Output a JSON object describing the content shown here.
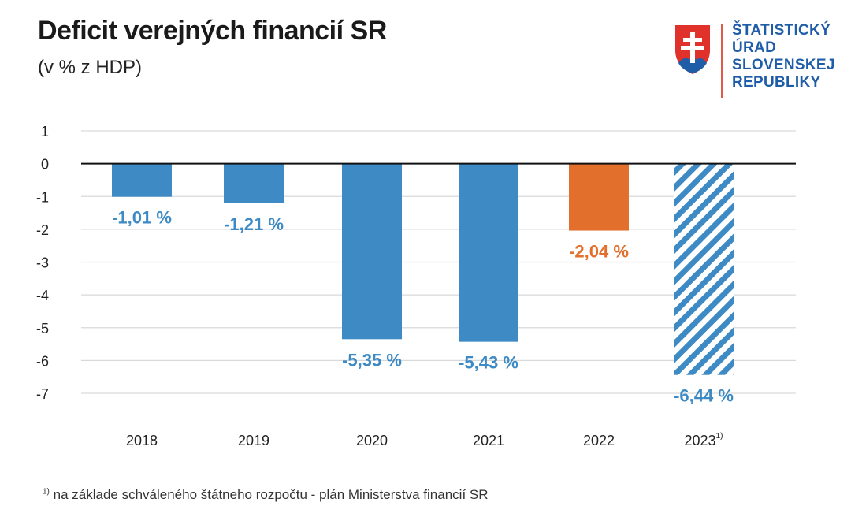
{
  "header": {
    "title": "Deficit verejných financií SR",
    "subtitle": "(v % z HDP)"
  },
  "logo": {
    "lines": [
      "ŠTATISTICKÝ",
      "ÚRAD",
      "SLOVENSKEJ",
      "REPUBLIKY"
    ],
    "icon": "slovak-coat-of-arms-icon"
  },
  "footnote": {
    "marker": "1)",
    "text": "na základe schváleného štátneho rozpočtu - plán Ministerstva financií SR"
  },
  "colors": {
    "bar_blue": "#3d8ac4",
    "bar_orange": "#e36f2c",
    "label_blue": "#3d8ac4",
    "label_orange": "#e36f2c",
    "grid": "#d9d9d9",
    "axis": "#111111"
  },
  "chart_data": {
    "type": "bar",
    "categories": [
      "2018",
      "2019",
      "2020",
      "2021",
      "2022",
      "2023"
    ],
    "category_superscripts": [
      "",
      "",
      "",
      "",
      "",
      "1)"
    ],
    "values": [
      -1.01,
      -1.21,
      -5.35,
      -5.43,
      -2.04,
      -6.44
    ],
    "data_labels": [
      "-1,01 %",
      "-1,21 %",
      "-5,35 %",
      "-5,43 %",
      "-2,04 %",
      "-6,44 %"
    ],
    "styles": [
      "solid-blue",
      "solid-blue",
      "solid-blue",
      "solid-blue",
      "solid-orange",
      "hatched-blue"
    ],
    "y_ticks": [
      1,
      0,
      -1,
      -2,
      -3,
      -4,
      -5,
      -6,
      -7
    ],
    "y_tick_labels": [
      "1",
      "0",
      "-1",
      "-2",
      "-3",
      "-4",
      "-5",
      "-6",
      "-7"
    ],
    "ylim": [
      -7,
      1
    ],
    "title": "Deficit verejných financií SR",
    "xlabel": "",
    "ylabel": "",
    "grid": true
  }
}
